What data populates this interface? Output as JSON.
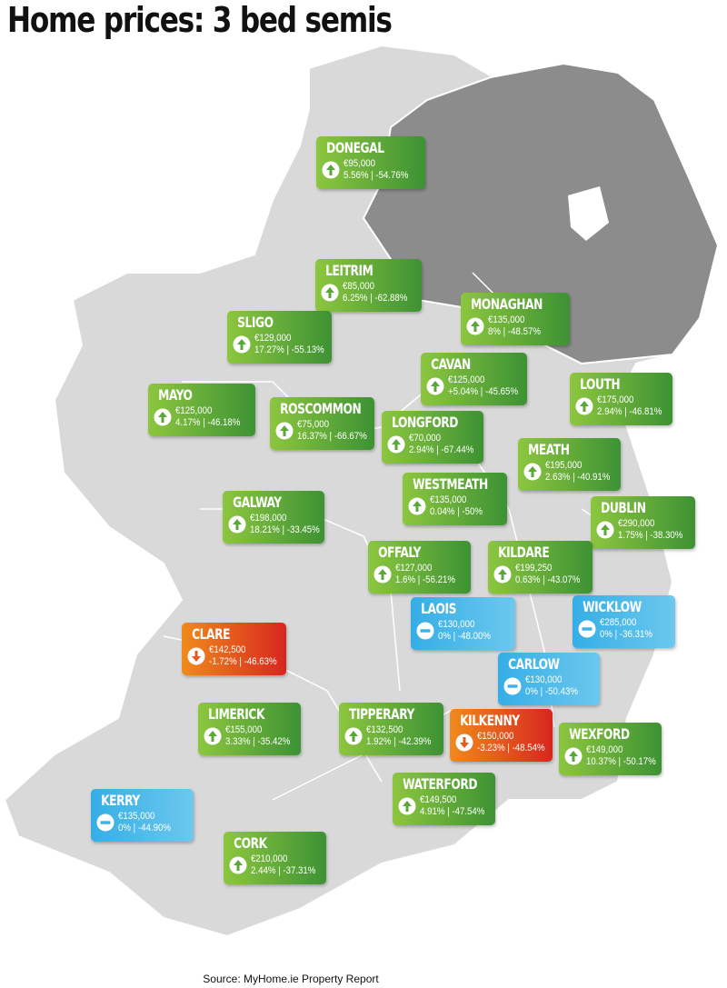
{
  "title": "Home prices: 3 bed semis",
  "counties": [
    {
      "name": "DONEGAL",
      "price": "€95,000",
      "change": "5.56% | -54.76%",
      "color": "green"
    },
    {
      "name": "LEITRIM",
      "price": "€85,000",
      "change": "6.25% | -62.88%",
      "color": "green"
    },
    {
      "name": "MONAGHAN",
      "price": "€135,000",
      "change": "8% | -48.57%",
      "color": "green"
    },
    {
      "name": "SLIGO",
      "price": "€129,000",
      "change": "17.27% | -55.13%",
      "color": "green"
    },
    {
      "name": "CAVAN",
      "price": "€125,000",
      "change": "+5.04% | -45.65%",
      "color": "green"
    },
    {
      "name": "LOUTH",
      "price": "€175,000",
      "change": "2.94% | -46.81%",
      "color": "green"
    },
    {
      "name": "MAYO",
      "price": "€125,000",
      "change": "4.17% | -46.18%",
      "color": "green"
    },
    {
      "name": "ROSCOMMON",
      "price": "€75,000",
      "change": "16.37% | -66.67%",
      "color": "green"
    },
    {
      "name": "LONGFORD",
      "price": "€70,000",
      "change": "2.94% | -67.44%",
      "color": "green"
    },
    {
      "name": "MEATH",
      "price": "€195,000",
      "change": "2.63% | -40.91%",
      "color": "green"
    },
    {
      "name": "WESTMEATH",
      "price": "€135,000",
      "change": "0.04% | -50%",
      "color": "green"
    },
    {
      "name": "GALWAY",
      "price": "€198,000",
      "change": "18.21% | -33.45%",
      "color": "green"
    },
    {
      "name": "DUBLIN",
      "price": "€290,000",
      "change": "1.75% | -38.30%",
      "color": "green"
    },
    {
      "name": "OFFALY",
      "price": "€127,000",
      "change": "1.6% | -56.21%",
      "color": "green"
    },
    {
      "name": "KILDARE",
      "price": "€199,250",
      "change": "0.63% | -43.07%",
      "color": "green"
    },
    {
      "name": "LAOIS",
      "price": "€130,000",
      "change": "0% | -48.00%",
      "color": "blue"
    },
    {
      "name": "WICKLOW",
      "price": "€285,000",
      "change": "0% | -36.31%",
      "color": "blue"
    },
    {
      "name": "CLARE",
      "price": "€142,500",
      "change": "-1.72% | -46.63%",
      "color": "red"
    },
    {
      "name": "CARLOW",
      "price": "€130,000",
      "change": "0% | -50.43%",
      "color": "blue"
    },
    {
      "name": "LIMERICK",
      "price": "€155,000",
      "change": "3.33% | -35.42%",
      "color": "green"
    },
    {
      "name": "TIPPERARY",
      "price": "€132,500",
      "change": "1.92% | -42.39%",
      "color": "green"
    },
    {
      "name": "KILKENNY",
      "price": "€150,000",
      "change": "-3.23% | -48.54%",
      "color": "red"
    },
    {
      "name": "WEXFORD",
      "price": "€149,000",
      "change": "10.37% | -50.17%",
      "color": "green"
    },
    {
      "name": "WATERFORD",
      "price": "€149,500",
      "change": "4.91% | -47.54%",
      "color": "green"
    },
    {
      "name": "KERRY",
      "price": "€135,000",
      "change": "0% | -44.90%",
      "color": "blue"
    },
    {
      "name": "CORK",
      "price": "€210,000",
      "change": "2.44% | -37.31%",
      "color": "green"
    }
  ],
  "source": "Source: MyHome.ie Property Report"
}
